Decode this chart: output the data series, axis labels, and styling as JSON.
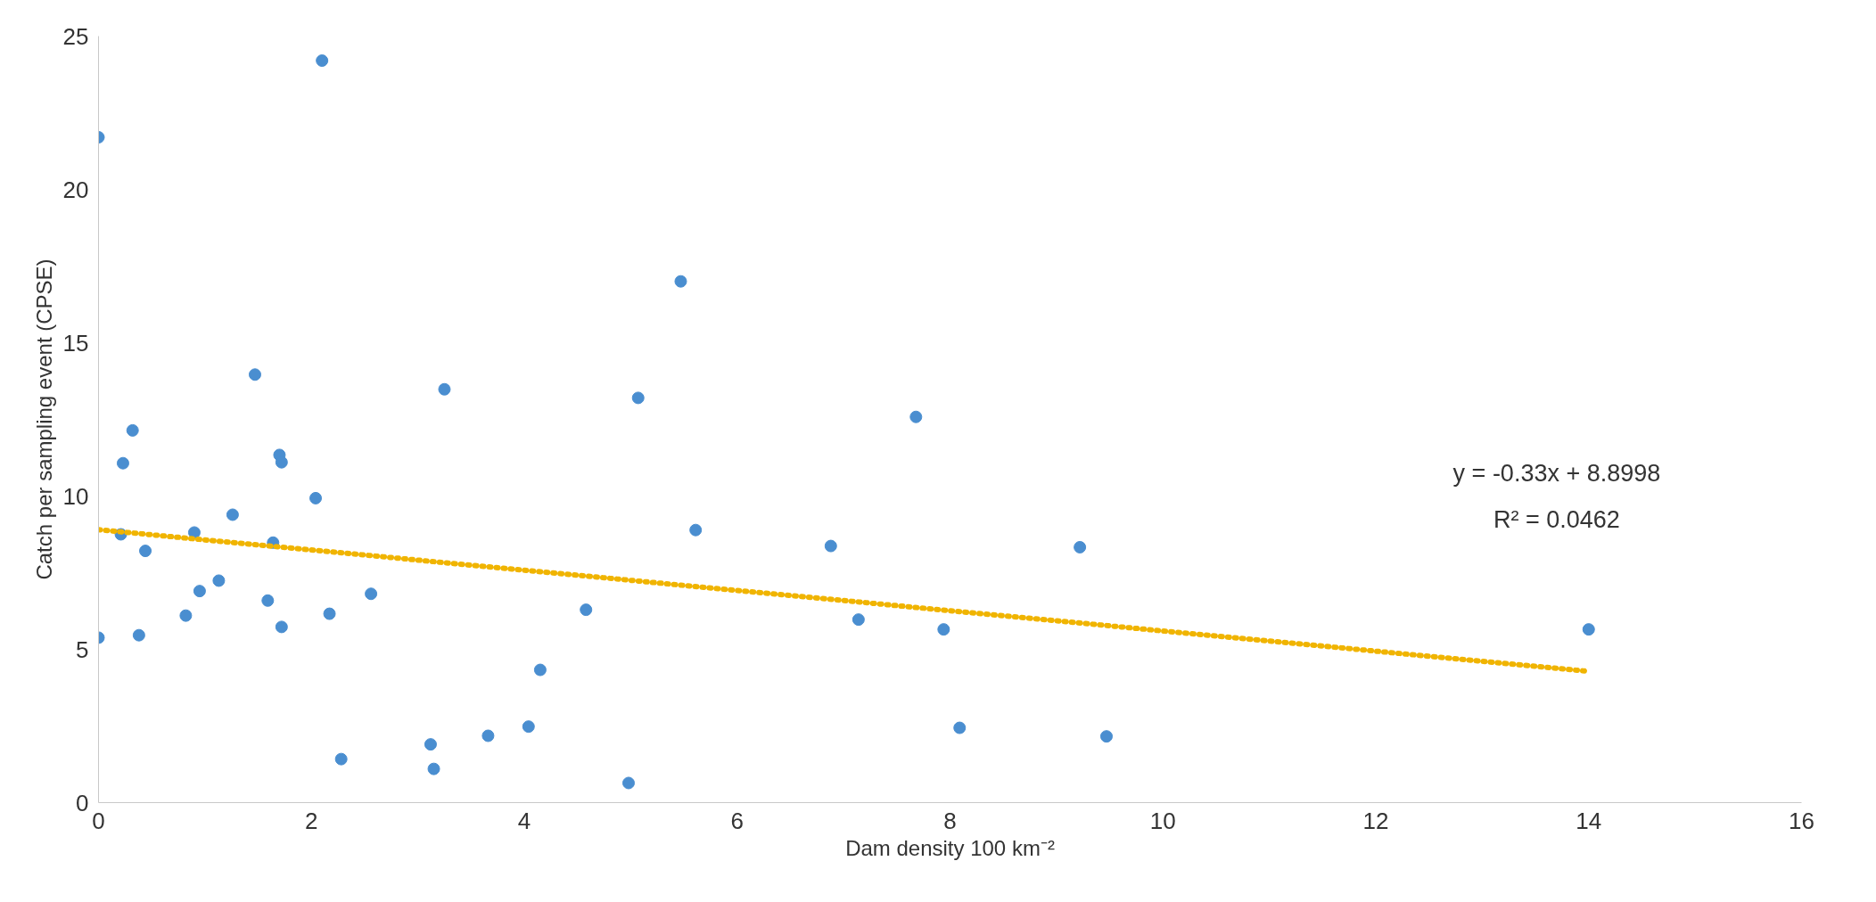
{
  "chart_data": {
    "type": "scatter",
    "xlabel": "Dam density 100 km⁻²",
    "ylabel": "Catch per sampling event (CPSE)",
    "xlim": [
      0,
      16
    ],
    "ylim": [
      0,
      25
    ],
    "xticks": [
      0,
      2,
      4,
      6,
      8,
      10,
      12,
      14,
      16
    ],
    "yticks": [
      0,
      5,
      10,
      15,
      20,
      25
    ],
    "grid": false,
    "marker": "circle",
    "annotations": [
      "y = -0.33x + 8.8998",
      "R² = 0.0462"
    ],
    "series": [
      {
        "color": "#4a8ed0",
        "x": [
          0,
          2.1,
          0,
          0.38,
          1.47,
          3.25,
          0.32,
          0.23,
          1.7,
          1.72,
          2.04,
          1.26,
          0.21,
          0.9,
          1.64,
          0.44,
          1.13,
          0.95,
          2.56,
          1.59,
          0.82,
          2.17,
          1.72,
          2.28,
          3.12,
          3.15,
          3.66,
          4.04,
          4.15,
          4.58,
          4.98,
          5.07,
          5.47,
          5.61,
          6.88,
          7.14,
          7.68,
          7.94,
          8.09,
          9.22,
          9.47,
          14.0
        ],
        "values": [
          21.7,
          24.2,
          5.38,
          5.46,
          13.96,
          13.48,
          12.14,
          11.07,
          11.34,
          11.1,
          9.93,
          9.39,
          8.75,
          8.81,
          8.48,
          8.21,
          7.24,
          6.9,
          6.81,
          6.59,
          6.1,
          6.16,
          5.73,
          1.42,
          1.9,
          1.1,
          2.18,
          2.48,
          4.33,
          6.29,
          0.64,
          13.2,
          17.0,
          8.89,
          8.37,
          5.97,
          12.58,
          5.65,
          2.44,
          8.33,
          2.16,
          5.65
        ]
      },
      {
        "type": "line",
        "color": "#f0b400",
        "line_style": "dotted",
        "marker": "none",
        "x": [
          0,
          14
        ],
        "values": [
          8.9,
          4.28
        ]
      }
    ]
  }
}
